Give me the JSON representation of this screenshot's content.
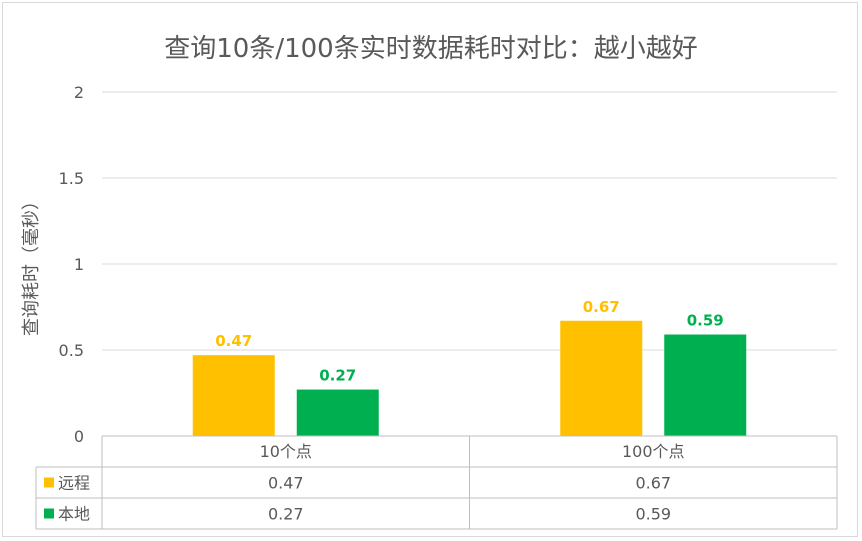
{
  "chart_data": {
    "type": "bar",
    "title": "查询10条/100条实时数据耗时对比：越小越好",
    "ylabel": "查询耗时（毫秒）",
    "xlabel": "",
    "ylim": [
      0,
      2
    ],
    "yticks": [
      "0",
      "0.5",
      "1",
      "1.5",
      "2"
    ],
    "categories": [
      "10个点",
      "100个点"
    ],
    "series": [
      {
        "name": "远程",
        "values": [
          0.47,
          0.67
        ],
        "labels": [
          "0.47",
          "0.67"
        ],
        "color": "#FFC000"
      },
      {
        "name": "本地",
        "values": [
          0.27,
          0.59
        ],
        "labels": [
          "0.27",
          "0.59"
        ],
        "color": "#00B050"
      }
    ],
    "grid": true,
    "data_table": true
  }
}
